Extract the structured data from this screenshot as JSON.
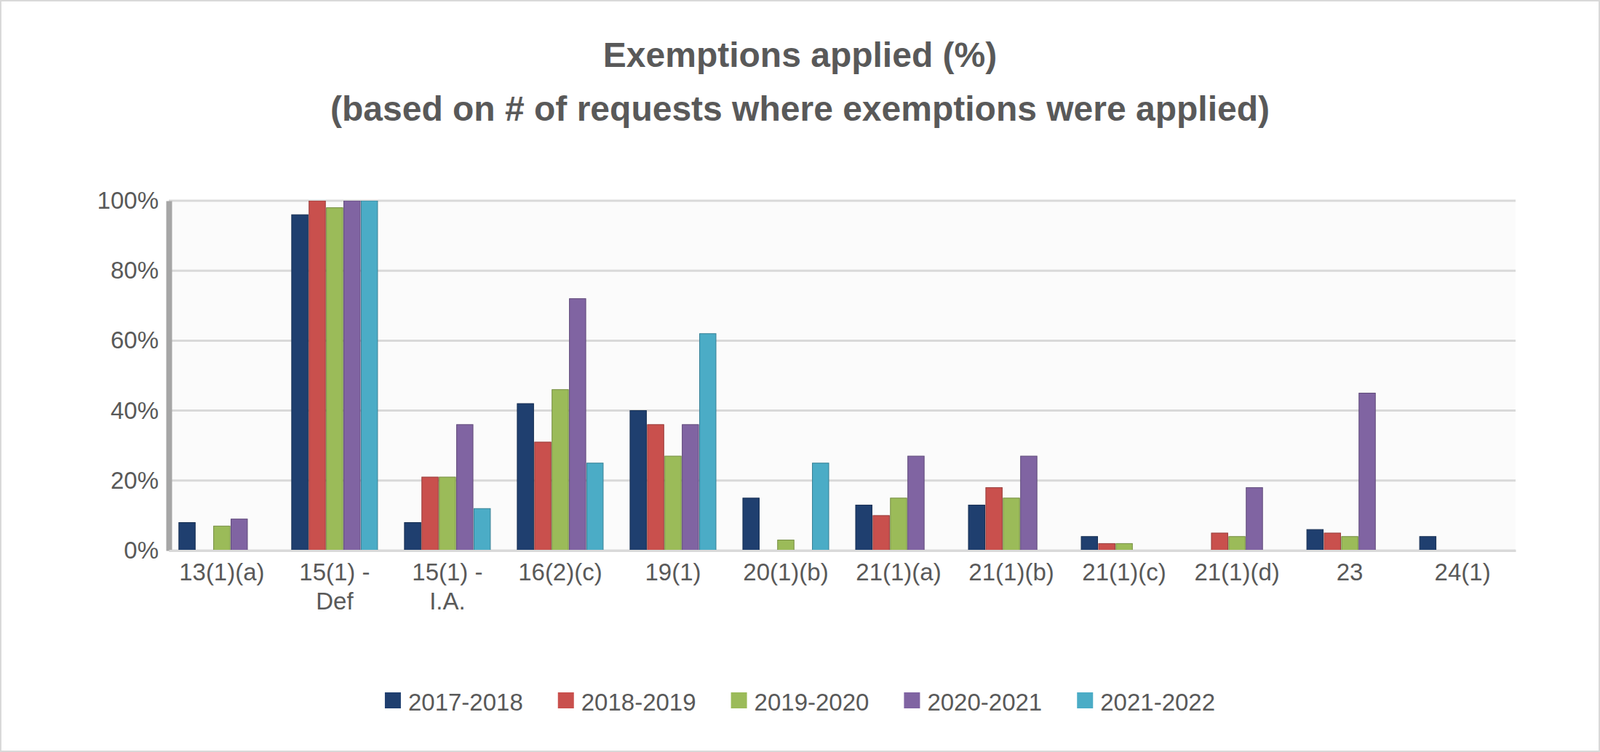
{
  "chart_data": {
    "type": "bar",
    "title": "Exemptions applied (%)",
    "subtitle": "(based on # of requests where exemptions were applied)",
    "categories": [
      "13(1)(a)",
      "15(1) - Def",
      "15(1) - I.A.",
      "16(2)(c)",
      "19(1)",
      "20(1)(b)",
      "21(1)(a)",
      "21(1)(b)",
      "21(1)(c)",
      "21(1)(d)",
      "23",
      "24(1)"
    ],
    "series": [
      {
        "name": "2017-2018",
        "color": "#1f3f6f",
        "values": [
          8,
          96,
          8,
          42,
          40,
          15,
          13,
          13,
          4,
          0,
          6,
          4
        ]
      },
      {
        "name": "2018-2019",
        "color": "#c9504d",
        "values": [
          0,
          100,
          21,
          31,
          36,
          0,
          10,
          18,
          2,
          5,
          5,
          0
        ]
      },
      {
        "name": "2019-2020",
        "color": "#9bbb59",
        "values": [
          7,
          98,
          21,
          46,
          27,
          3,
          15,
          15,
          2,
          4,
          4,
          0
        ]
      },
      {
        "name": "2020-2021",
        "color": "#8064a2",
        "values": [
          9,
          100,
          36,
          72,
          36,
          0,
          27,
          27,
          0,
          18,
          45,
          0
        ]
      },
      {
        "name": "2021-2022",
        "color": "#4bacc6",
        "values": [
          0,
          100,
          12,
          25,
          62,
          25,
          0,
          0,
          0,
          0,
          0,
          0
        ]
      }
    ],
    "ylim": [
      0,
      100
    ],
    "yticks": [
      {
        "value": 0,
        "label": "0%"
      },
      {
        "value": 20,
        "label": "20%"
      },
      {
        "value": 40,
        "label": "40%"
      },
      {
        "value": 60,
        "label": "60%"
      },
      {
        "value": 80,
        "label": "80%"
      },
      {
        "value": 100,
        "label": "100%"
      }
    ],
    "grid": true,
    "legend": "bottom"
  }
}
